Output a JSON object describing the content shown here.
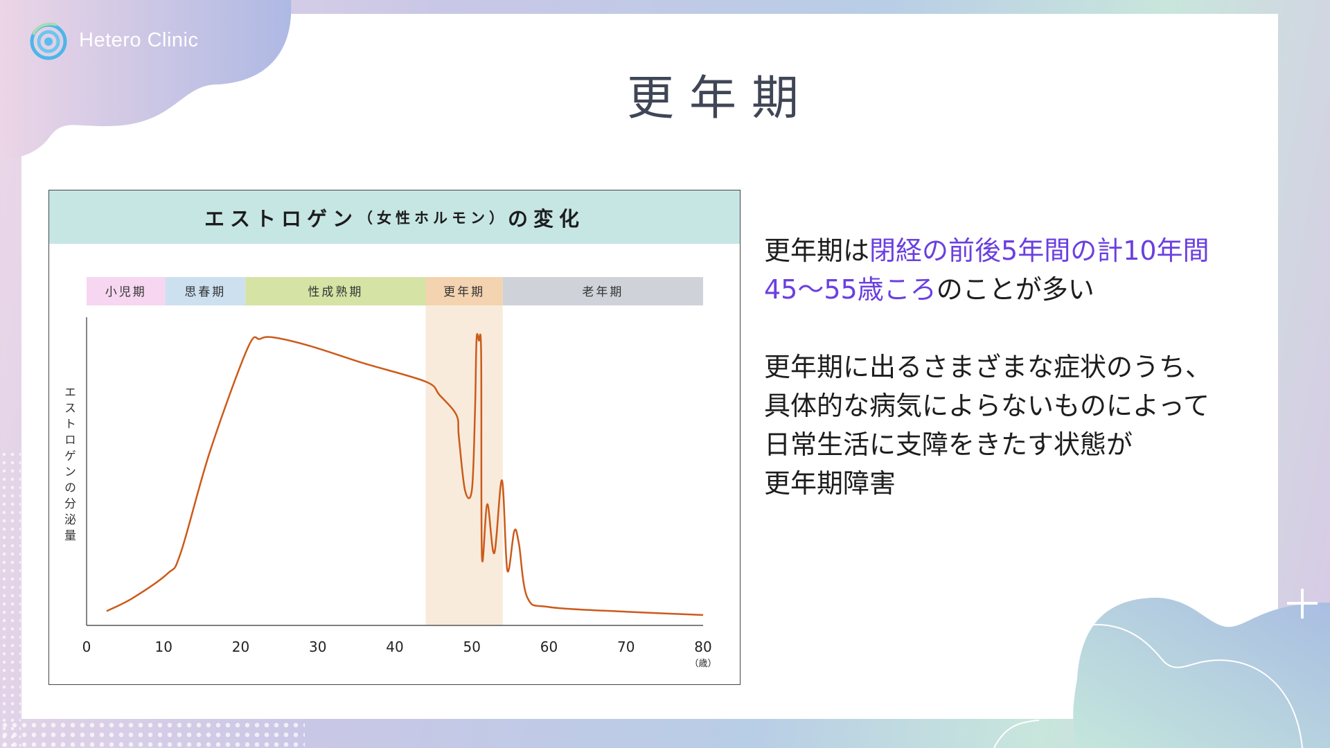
{
  "brand": {
    "name": "Hetero Clinic",
    "icon": "spiral-logo-icon"
  },
  "title": "更年期",
  "chart_data": {
    "type": "line",
    "title": "エストロゲン",
    "title_sub": "（女性ホルモン）",
    "title_tail": "の変化",
    "ylabel": "エストロゲンの分泌量",
    "xlabel_unit": "（歳）",
    "xlim": [
      0,
      80
    ],
    "ylim": [
      0,
      100
    ],
    "xticks": [
      0,
      10,
      20,
      30,
      40,
      50,
      60,
      70,
      80
    ],
    "grid": false,
    "line_color": "#cc5a1a",
    "highlight_range": [
      44,
      54
    ],
    "highlight_color": "#f8ebdc",
    "periods": [
      {
        "label": "小児期",
        "from": 0,
        "to": 10.2,
        "color": "#f6d6f0"
      },
      {
        "label": "思春期",
        "from": 10.2,
        "to": 20.6,
        "color": "#cde0f0"
      },
      {
        "label": "性成熟期",
        "from": 20.6,
        "to": 44,
        "color": "#d5e3a5"
      },
      {
        "label": "更年期",
        "from": 44,
        "to": 54,
        "color": "#f3d3b0"
      },
      {
        "label": "老年期",
        "from": 54,
        "to": 80,
        "color": "#cfd2d8"
      }
    ],
    "x": [
      2.6,
      6,
      10.5,
      12.2,
      16,
      20.9,
      22.5,
      24.3,
      29,
      36,
      44,
      45.8,
      48,
      48.3,
      49.1,
      50,
      50.4,
      50.6,
      50.9,
      51.2,
      51.3,
      52,
      52.9,
      53.9,
      54.6,
      55.5,
      56.1,
      57.2,
      60.1,
      70,
      80
    ],
    "y": [
      4.7,
      9,
      17,
      23.7,
      57,
      91,
      94,
      94.5,
      91.7,
      86,
      80,
      75.6,
      69,
      62,
      44.4,
      44.5,
      70,
      93.8,
      93.5,
      89,
      22.6,
      39.8,
      23.7,
      47.6,
      18,
      31,
      26.8,
      9.1,
      6,
      4.5,
      3.4
    ]
  },
  "text": {
    "p1_a": "更年期は",
    "p1_hl1": "閉経の前後5年間の計10年間",
    "p1_hl2": "45〜55歳ころ",
    "p1_b": "のことが多い",
    "p2_l1": "更年期に出るさまざまな症状のうち、",
    "p2_l2": "具体的な病気によらないものによって",
    "p2_l3": "日常生活に支障をきたす状態が",
    "p2_l4": "更年期障害",
    "highlight_color": "#6a3fe0"
  }
}
